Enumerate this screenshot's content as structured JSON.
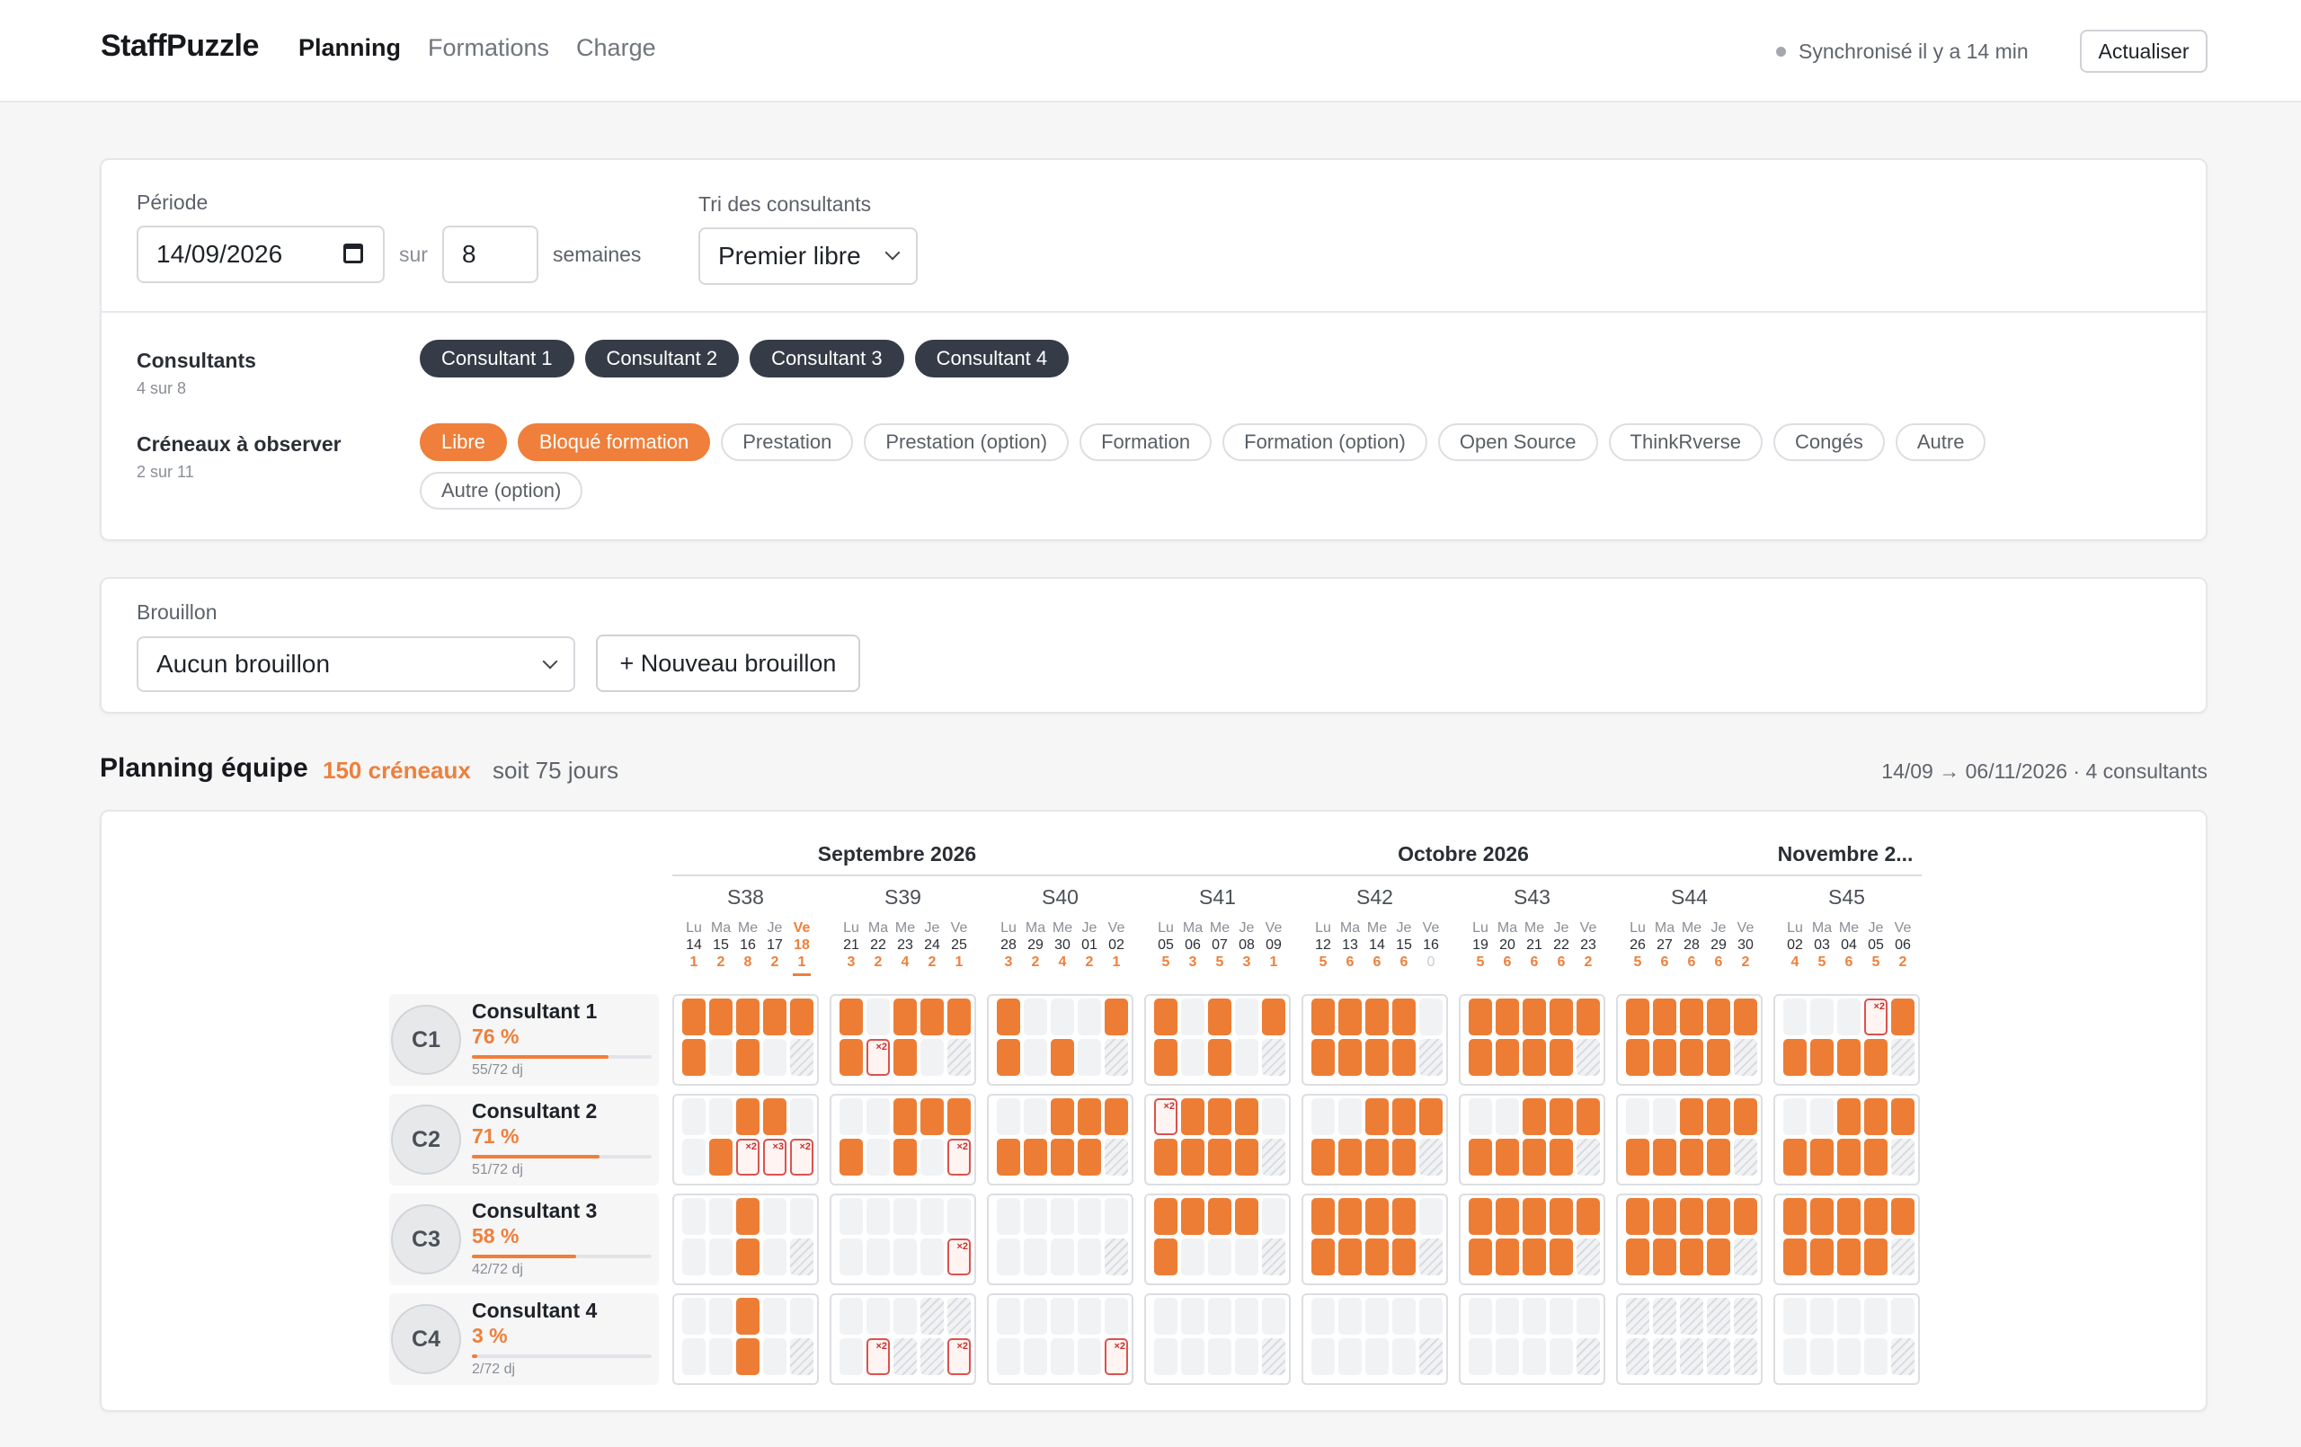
{
  "header": {
    "brand": "StaffPuzzle",
    "nav": [
      "Planning",
      "Formations",
      "Charge"
    ],
    "sync_text": "Synchronisé il y a 14 min",
    "refresh_label": "Actualiser"
  },
  "filters": {
    "period_label": "Période",
    "date_value": "14/09/2026",
    "sur_label": "sur",
    "weeks_value": "8",
    "weeks_label": "semaines",
    "sort_label": "Tri des consultants",
    "sort_value": "Premier libre",
    "consultants_label": "Consultants",
    "consultants_count": "4 sur 8",
    "consultants": [
      "Consultant 1",
      "Consultant 2",
      "Consultant 3",
      "Consultant 4"
    ],
    "slots_label": "Créneaux à observer",
    "slots_count": "2 sur 11",
    "slots": [
      {
        "label": "Libre",
        "active": true
      },
      {
        "label": "Bloqué formation",
        "active": true
      },
      {
        "label": "Prestation",
        "active": false
      },
      {
        "label": "Prestation (option)",
        "active": false
      },
      {
        "label": "Formation",
        "active": false
      },
      {
        "label": "Formation (option)",
        "active": false
      },
      {
        "label": "Open Source",
        "active": false
      },
      {
        "label": "ThinkRverse",
        "active": false
      },
      {
        "label": "Congés",
        "active": false
      },
      {
        "label": "Autre",
        "active": false
      },
      {
        "label": "Autre (option)",
        "active": false
      }
    ]
  },
  "draft": {
    "label": "Brouillon",
    "select_value": "Aucun brouillon",
    "new_label": "+ Nouveau brouillon"
  },
  "planning": {
    "title": "Planning équipe",
    "count": "150 créneaux",
    "days": "soit 75 jours",
    "range": "14/09 → 06/11/2026 · 4 consultants",
    "colors": {
      "accent": "#ef7f3a",
      "dark_chip": "#353c47",
      "conflict": "#d9534f"
    },
    "months": [
      "Septembre 2026",
      "Octobre 2026",
      "Novembre 2..."
    ],
    "today_index": 4,
    "weeks": [
      {
        "label": "S38",
        "days": [
          [
            "Lu",
            "14",
            "1"
          ],
          [
            "Ma",
            "15",
            "2"
          ],
          [
            "Me",
            "16",
            "8"
          ],
          [
            "Je",
            "17",
            "2"
          ],
          [
            "Ve",
            "18",
            "1"
          ]
        ]
      },
      {
        "label": "S39",
        "days": [
          [
            "Lu",
            "21",
            "3"
          ],
          [
            "Ma",
            "22",
            "2"
          ],
          [
            "Me",
            "23",
            "4"
          ],
          [
            "Je",
            "24",
            "2"
          ],
          [
            "Ve",
            "25",
            "1"
          ]
        ]
      },
      {
        "label": "S40",
        "days": [
          [
            "Lu",
            "28",
            "3"
          ],
          [
            "Ma",
            "29",
            "2"
          ],
          [
            "Me",
            "30",
            "4"
          ],
          [
            "Je",
            "01",
            "2"
          ],
          [
            "Ve",
            "02",
            "1"
          ]
        ]
      },
      {
        "label": "S41",
        "days": [
          [
            "Lu",
            "05",
            "5"
          ],
          [
            "Ma",
            "06",
            "3"
          ],
          [
            "Me",
            "07",
            "5"
          ],
          [
            "Je",
            "08",
            "3"
          ],
          [
            "Ve",
            "09",
            "1"
          ]
        ]
      },
      {
        "label": "S42",
        "days": [
          [
            "Lu",
            "12",
            "5"
          ],
          [
            "Ma",
            "13",
            "6"
          ],
          [
            "Me",
            "14",
            "6"
          ],
          [
            "Je",
            "15",
            "6"
          ],
          [
            "Ve",
            "16",
            "0"
          ]
        ]
      },
      {
        "label": "S43",
        "days": [
          [
            "Lu",
            "19",
            "5"
          ],
          [
            "Ma",
            "20",
            "6"
          ],
          [
            "Me",
            "21",
            "6"
          ],
          [
            "Je",
            "22",
            "6"
          ],
          [
            "Ve",
            "23",
            "2"
          ]
        ]
      },
      {
        "label": "S44",
        "days": [
          [
            "Lu",
            "26",
            "5"
          ],
          [
            "Ma",
            "27",
            "6"
          ],
          [
            "Me",
            "28",
            "6"
          ],
          [
            "Je",
            "29",
            "6"
          ],
          [
            "Ve",
            "30",
            "2"
          ]
        ]
      },
      {
        "label": "S45",
        "days": [
          [
            "Lu",
            "02",
            "4"
          ],
          [
            "Ma",
            "03",
            "5"
          ],
          [
            "Me",
            "04",
            "6"
          ],
          [
            "Je",
            "05",
            "5"
          ],
          [
            "Ve",
            "06",
            "2"
          ]
        ]
      }
    ],
    "consultants": [
      {
        "avatar": "C1",
        "name": "Consultant 1",
        "pct": "76 %",
        "ratio": 0.76,
        "dj": "55/72 dj",
        "grid": [
          "ooooo|oxoooo|ox..o|o.o.o|oooo.|ooooo|ooooo|...bo",
          "o.o.h|obo.h|o.o.h|o.o.h|ooooh|ooooh|ooooh|ooooh"
        ],
        "badges": [
          "|x2||||||x2",
          ""
        ]
      },
      {
        "avatar": "C2",
        "name": "Consultant 2",
        "pct": "71 %",
        "ratio": 0.71,
        "dj": "51/72 dj",
        "grid": [
          "..oo.|..ooo|..ooo|booo.|..ooo|..ooo|..ooo|..ooo",
          ".obbb|o.o.b|ooooh|ooooh|ooooh|ooooh|ooooh|ooooh"
        ],
        "badges": [
          "|||x2||||",
          "|||"
        ]
      },
      {
        "avatar": "C3",
        "name": "Consultant 3",
        "pct": "58 %",
        "ratio": 0.58,
        "dj": "42/72 dj",
        "grid": [
          "..o..|.....|.....|oooo.|oooo.|ooooo|ooooo|ooooo",
          "..o.h|....b|....h|o...h|ooooh|ooooh|ooooh|ooooh"
        ],
        "badges": [
          "",
          ""
        ]
      },
      {
        "avatar": "C4",
        "name": "Consultant 4",
        "pct": "3 %",
        "ratio": 0.03,
        "dj": "2/72 dj",
        "grid": [
          "..o..|...hh|.....|.....|.....|.....|hhhhh|.....",
          "..o.h|.bhhb|....b|....h|....h|....h|hhhhh|....h"
        ],
        "badges": [
          "",
          ""
        ]
      }
    ]
  }
}
